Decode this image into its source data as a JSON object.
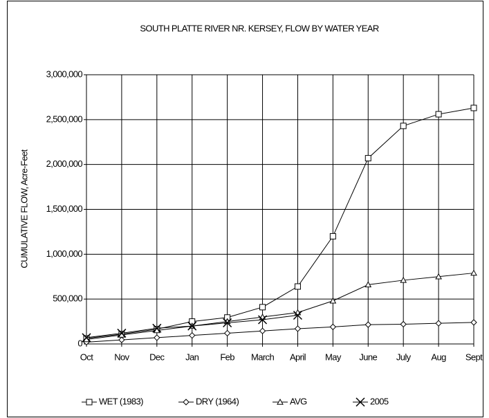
{
  "chart_data": {
    "type": "line",
    "title": "SOUTH PLATTE RIVER NR. KERSEY, FLOW BY WATER YEAR",
    "y_label": "CUMULATIVE FLOW, Acre-Feet",
    "categories": [
      "Oct",
      "Nov",
      "Dec",
      "Jan",
      "Feb",
      "March",
      "April",
      "May",
      "June",
      "July",
      "Aug",
      "Sept"
    ],
    "series": [
      {
        "name": "WET (1983)",
        "color": "#000000",
        "marker": "square",
        "values": [
          62000,
          110000,
          165000,
          250000,
          295000,
          410000,
          640000,
          1200000,
          2070000,
          2430000,
          2560000,
          2630000
        ]
      },
      {
        "name": "DRY (1964)",
        "color": "#000000",
        "marker": "diamond",
        "values": [
          20000,
          45000,
          70000,
          95000,
          120000,
          145000,
          170000,
          190000,
          215000,
          220000,
          230000,
          240000
        ]
      },
      {
        "name": "AVG",
        "color": "#000000",
        "marker": "triangle",
        "values": [
          50000,
          100000,
          150000,
          200000,
          250000,
          300000,
          350000,
          480000,
          660000,
          710000,
          750000,
          790000
        ]
      },
      {
        "name": "2005",
        "color": "#000000",
        "marker": "x",
        "values": [
          70000,
          120000,
          175000,
          200000,
          235000,
          270000,
          320000,
          null,
          null,
          null,
          null,
          null
        ]
      }
    ],
    "ylim": [
      0,
      3000000
    ],
    "yticks": [
      0,
      {
        "value": 500000,
        "label": "500,000"
      },
      {
        "value": 1000000,
        "label": "1,000,000"
      },
      {
        "value": 1500000,
        "label": "1,500,000"
      },
      {
        "value": 2000000,
        "label": "2,000,000"
      },
      {
        "value": 2500000,
        "label": "2,500,000"
      },
      {
        "value": 3000000,
        "label": "3,000,000"
      }
    ],
    "grid": true,
    "legend": "bottom"
  }
}
